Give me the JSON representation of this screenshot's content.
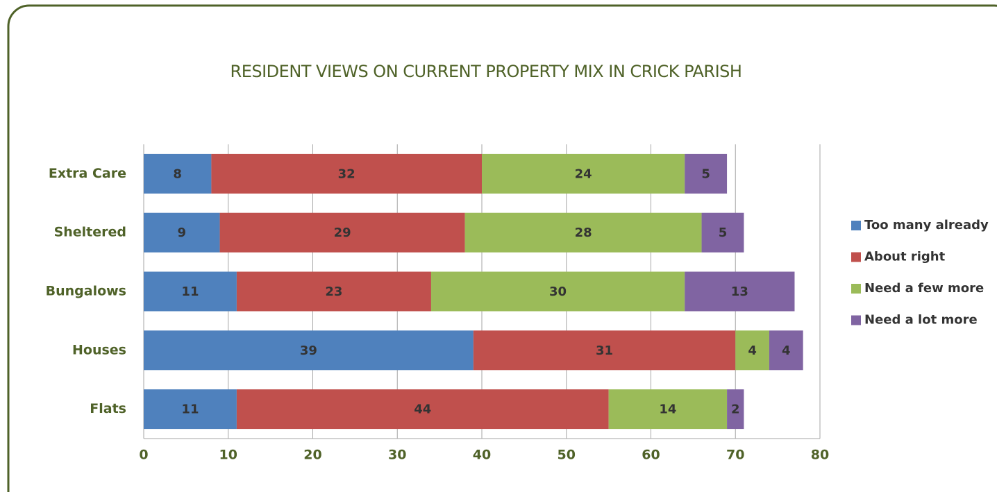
{
  "chart_data": {
    "type": "bar",
    "orientation": "horizontal",
    "stacked": true,
    "title": "RESIDENT VIEWS ON CURRENT PROPERTY MIX IN CRICK PARISH",
    "categories": [
      "Extra Care",
      "Sheltered",
      "Bungalows",
      "Houses",
      "Flats"
    ],
    "series": [
      {
        "name": "Too many already",
        "color": "#4f81bd",
        "values": [
          8,
          9,
          11,
          39,
          11
        ]
      },
      {
        "name": "About right",
        "color": "#c0504d",
        "values": [
          32,
          29,
          23,
          31,
          44
        ]
      },
      {
        "name": "Need a few more",
        "color": "#9bbb59",
        "values": [
          24,
          28,
          30,
          4,
          14
        ]
      },
      {
        "name": "Need a lot more",
        "color": "#8064a2",
        "values": [
          5,
          5,
          13,
          4,
          2
        ]
      }
    ],
    "xlim": [
      0,
      80
    ],
    "xticks": [
      0,
      10,
      20,
      30,
      40,
      50,
      60,
      70,
      80
    ],
    "grid": true,
    "legend": "right"
  }
}
